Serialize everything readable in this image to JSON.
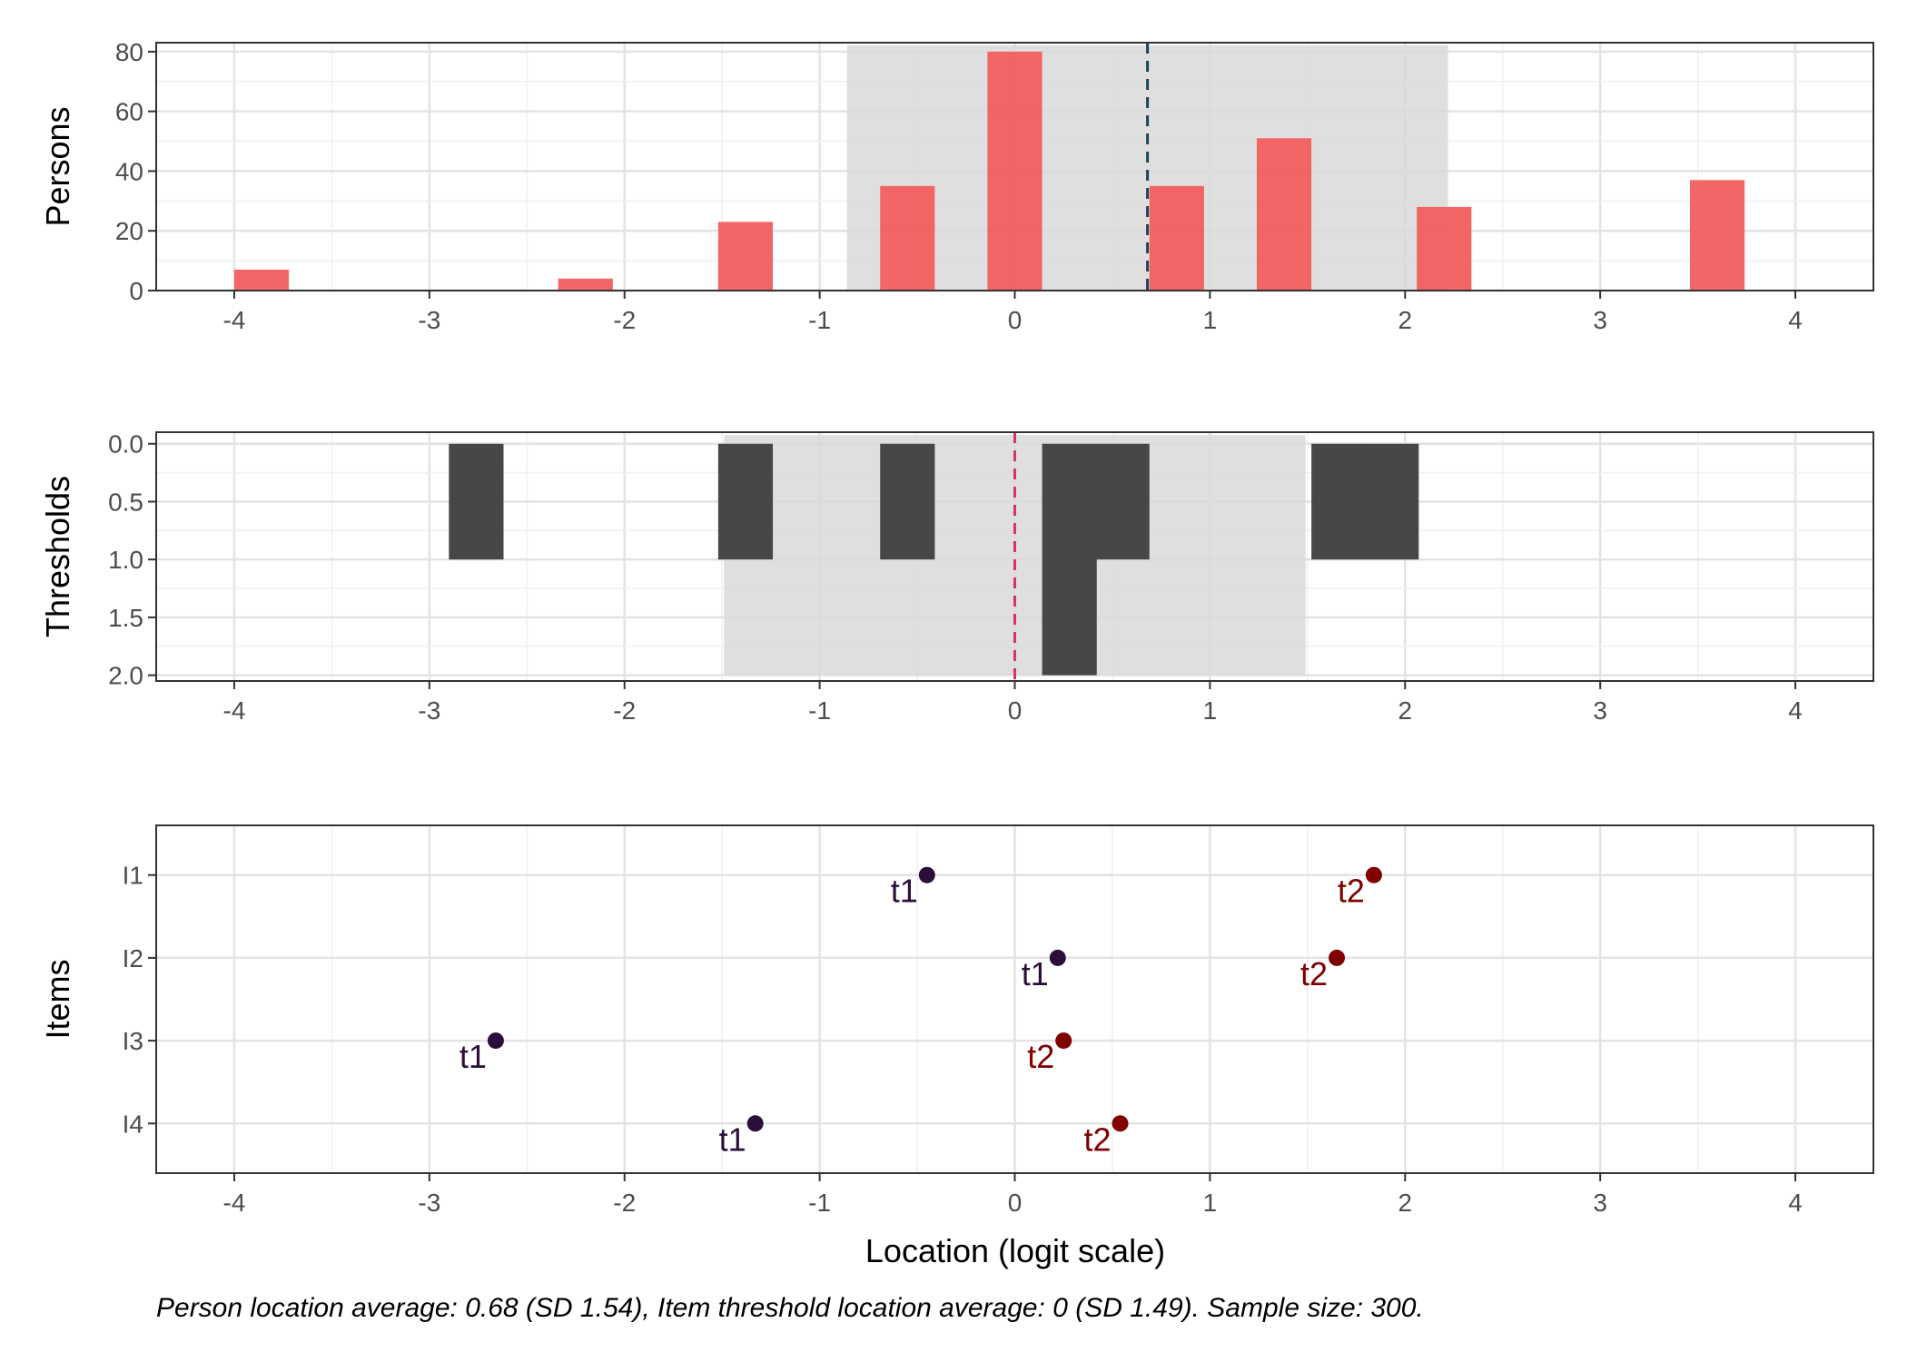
{
  "chart_data": [
    {
      "type": "bar",
      "ylabel": "Persons",
      "xlim": [
        -4.4,
        4.4
      ],
      "ylim": [
        0,
        83
      ],
      "x_ticks": [
        -4,
        -3,
        -2,
        -1,
        0,
        1,
        2,
        3,
        4
      ],
      "x_tick_labels": [
        "-4",
        "-3",
        "-2",
        "-1",
        "0",
        "1",
        "2",
        "3",
        "4"
      ],
      "y_ticks": [
        0,
        20,
        40,
        60,
        80
      ],
      "y_tick_labels": [
        "0",
        "20",
        "40",
        "60",
        "80"
      ],
      "bars": [
        {
          "x": -3.86,
          "value": 7
        },
        {
          "x": -2.2,
          "value": 4
        },
        {
          "x": -1.38,
          "value": 23
        },
        {
          "x": -0.55,
          "value": 35
        },
        {
          "x": 0.0,
          "value": 80
        },
        {
          "x": 0.83,
          "value": 35
        },
        {
          "x": 1.38,
          "value": 51
        },
        {
          "x": 2.2,
          "value": 28
        },
        {
          "x": 3.6,
          "value": 37
        }
      ],
      "bar_width": 0.28,
      "bar_color": "#f25e5e",
      "mean_line": 0.68,
      "mean_line_color": "#1f4257",
      "sd_band": [
        -0.86,
        2.22
      ],
      "grid": true
    },
    {
      "type": "bar",
      "ylabel": "Thresholds",
      "xlim": [
        -4.4,
        4.4
      ],
      "ylim": [
        2.05,
        -0.1
      ],
      "y_reversed": true,
      "x_ticks": [
        -4,
        -3,
        -2,
        -1,
        0,
        1,
        2,
        3,
        4
      ],
      "x_tick_labels": [
        "-4",
        "-3",
        "-2",
        "-1",
        "0",
        "1",
        "2",
        "3",
        "4"
      ],
      "y_ticks": [
        0,
        0.5,
        1,
        1.5,
        2
      ],
      "y_tick_labels": [
        "0.0",
        "0.5",
        "1.0",
        "1.5",
        "2.0"
      ],
      "bars": [
        {
          "x": -2.76,
          "value": 1
        },
        {
          "x": -1.38,
          "value": 1
        },
        {
          "x": -0.55,
          "value": 1
        },
        {
          "x": 0.28,
          "value": 2
        },
        {
          "x": 0.55,
          "value": 1
        },
        {
          "x": 1.66,
          "value": 1
        },
        {
          "x": 1.93,
          "value": 1
        }
      ],
      "bar_width": 0.28,
      "bar_color": "#474747",
      "mean_line": 0,
      "mean_line_color": "#d6336c",
      "sd_band": [
        -1.49,
        1.49
      ],
      "grid": true
    },
    {
      "type": "scatter",
      "ylabel": "Items",
      "xlabel": "Location (logit scale)",
      "xlim": [
        -4.4,
        4.4
      ],
      "x_ticks": [
        -4,
        -3,
        -2,
        -1,
        0,
        1,
        2,
        3,
        4
      ],
      "x_tick_labels": [
        "-4",
        "-3",
        "-2",
        "-1",
        "0",
        "1",
        "2",
        "3",
        "4"
      ],
      "categories": [
        "I1",
        "I2",
        "I3",
        "I4"
      ],
      "series": [
        {
          "name": "t1",
          "color": "#2a0f3a",
          "points": [
            {
              "item": "I1",
              "x": -0.45
            },
            {
              "item": "I2",
              "x": 0.22
            },
            {
              "item": "I3",
              "x": -2.66
            },
            {
              "item": "I4",
              "x": -1.33
            }
          ]
        },
        {
          "name": "t2",
          "color": "#800000",
          "points": [
            {
              "item": "I1",
              "x": 1.84
            },
            {
              "item": "I2",
              "x": 1.65
            },
            {
              "item": "I3",
              "x": 0.25
            },
            {
              "item": "I4",
              "x": 0.54
            }
          ]
        }
      ],
      "grid": true
    }
  ],
  "caption": "Person location average: 0.68 (SD 1.54), Item threshold location average: 0 (SD 1.49). Sample size: 300.",
  "colors": {
    "panel_border": "#333333",
    "grid_major": "#e3e3e3",
    "grid_minor": "#f0f0f0",
    "sd_band": "#d9d9d9"
  }
}
